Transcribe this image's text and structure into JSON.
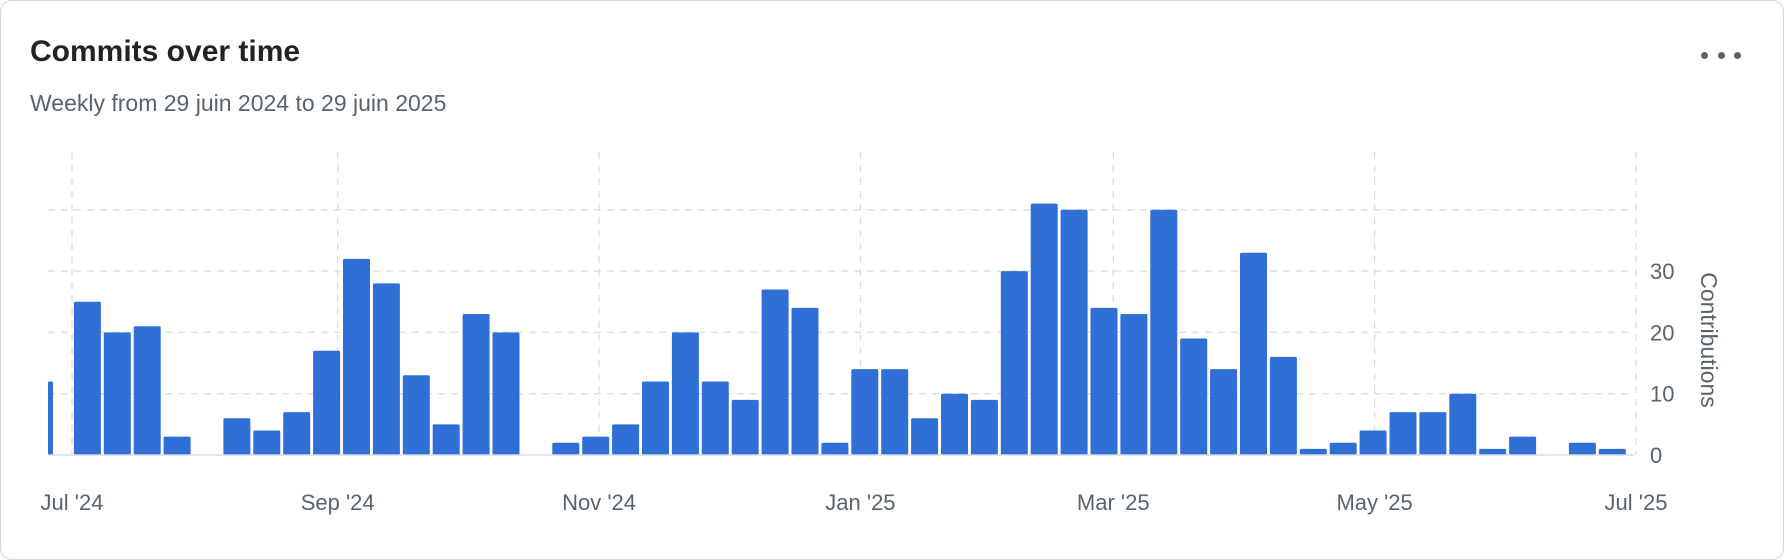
{
  "title": "Commits over time",
  "subtitle": "Weekly from 29 juin 2024 to 29 juin 2025",
  "menu_icon": "kebab-horizontal-icon",
  "colors": {
    "bar": "#2f6fd6",
    "grid": "#d8dde3",
    "text": "#59636e",
    "title": "#1f2328"
  },
  "chart_data": {
    "type": "bar",
    "title": "Commits over time",
    "subtitle": "Weekly from 29 juin 2024 to 29 juin 2025",
    "ylabel": "Contributions",
    "xlabel": "",
    "ylim": [
      0,
      40
    ],
    "yticks": [
      0,
      10,
      20,
      30
    ],
    "xticks": [
      "Jul '24",
      "Sep '24",
      "Nov '24",
      "Jan '25",
      "Mar '25",
      "May '25",
      "Jul '25"
    ],
    "grid": true,
    "x_start": "2024-06-29",
    "x_end": "2025-06-29",
    "frequency": "weekly",
    "values": [
      12,
      25,
      20,
      21,
      3,
      0,
      6,
      4,
      7,
      17,
      32,
      28,
      13,
      5,
      23,
      20,
      0,
      2,
      3,
      5,
      12,
      20,
      12,
      9,
      27,
      24,
      2,
      14,
      14,
      6,
      10,
      9,
      30,
      41,
      40,
      24,
      23,
      40,
      19,
      14,
      33,
      16,
      1,
      2,
      4,
      7,
      7,
      10,
      1,
      3,
      0,
      2,
      1
    ]
  }
}
